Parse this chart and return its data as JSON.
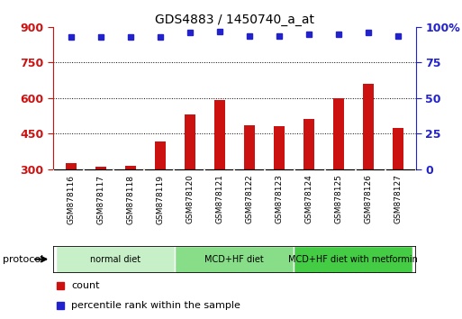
{
  "title": "GDS4883 / 1450740_a_at",
  "samples": [
    "GSM878116",
    "GSM878117",
    "GSM878118",
    "GSM878119",
    "GSM878120",
    "GSM878121",
    "GSM878122",
    "GSM878123",
    "GSM878124",
    "GSM878125",
    "GSM878126",
    "GSM878127"
  ],
  "counts": [
    325,
    310,
    312,
    415,
    530,
    593,
    485,
    483,
    510,
    600,
    660,
    473
  ],
  "percentile_ranks": [
    93,
    93,
    93,
    93,
    96,
    97,
    94,
    94,
    95,
    95,
    96,
    94
  ],
  "ylim_left": [
    300,
    900
  ],
  "ylim_right": [
    0,
    100
  ],
  "yticks_left": [
    300,
    450,
    600,
    750,
    900
  ],
  "yticks_right": [
    0,
    25,
    50,
    75,
    100
  ],
  "bar_color": "#cc1111",
  "dot_color": "#2222cc",
  "groups": [
    {
      "label": "normal diet",
      "start": 0,
      "end": 4,
      "color": "#c8f0c8"
    },
    {
      "label": "MCD+HF diet",
      "start": 4,
      "end": 8,
      "color": "#88dd88"
    },
    {
      "label": "MCD+HF diet with metformin",
      "start": 8,
      "end": 12,
      "color": "#44cc44"
    }
  ],
  "protocol_label": "protocol",
  "background_color": "#ffffff",
  "tick_area_color": "#cccccc",
  "tick_sep_color": "#ffffff",
  "legend_count_label": "count",
  "legend_pct_label": "percentile rank within the sample",
  "bar_width": 0.35,
  "dot_size": 5
}
